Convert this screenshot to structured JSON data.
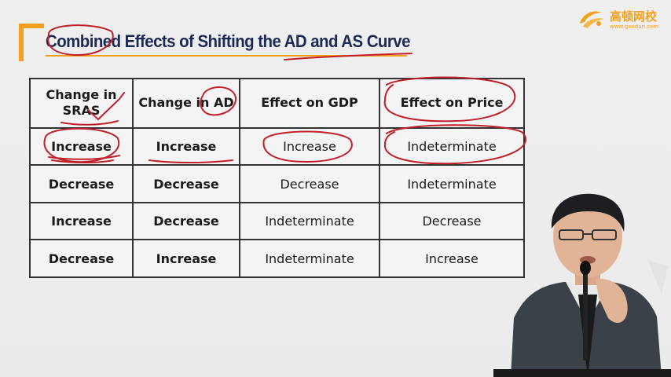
{
  "slide": {
    "title": "Combined Effects of Shifting the AD and AS Curve"
  },
  "brand": {
    "name": "高顿网校",
    "url": "www.gaodun.com"
  },
  "table": {
    "headers": [
      "Change in SRAS",
      "Change in AD",
      "Effect on GDP",
      "Effect on Price"
    ],
    "rows": [
      [
        "Increase",
        "Increase",
        "Increase",
        "Indeterminate"
      ],
      [
        "Decrease",
        "Decrease",
        "Decrease",
        "Indeterminate"
      ],
      [
        "Increase",
        "Decrease",
        "Indeterminate",
        "Decrease"
      ],
      [
        "Decrease",
        "Increase",
        "Indeterminate",
        "Increase"
      ]
    ]
  },
  "colors": {
    "title": "#1c2a55",
    "accent": "#f2a01e",
    "annotation": "#c0202a"
  }
}
